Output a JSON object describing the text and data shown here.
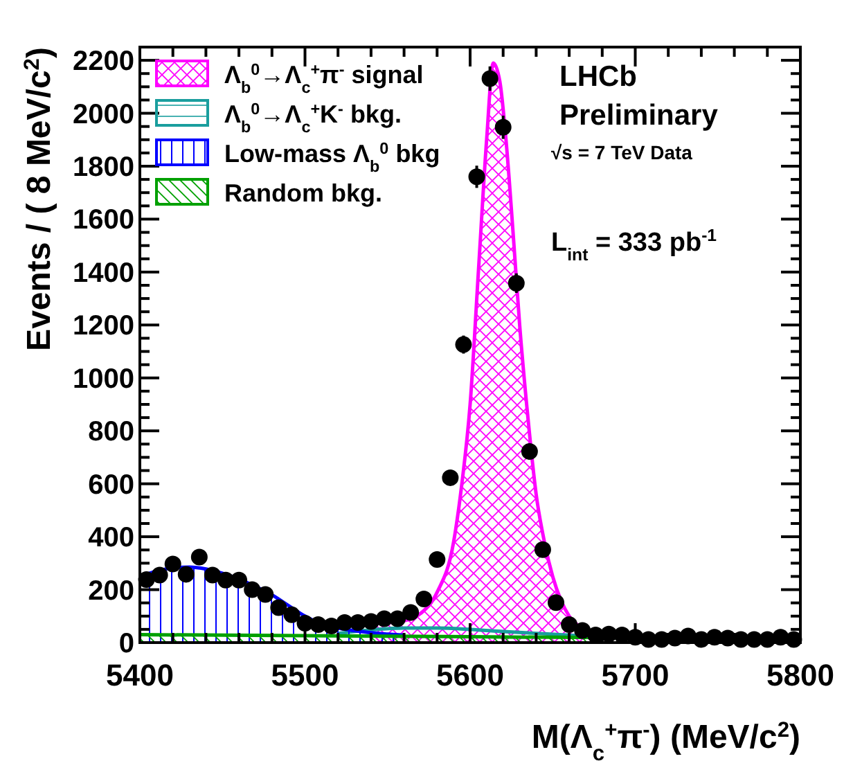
{
  "chart_data": {
    "type": "scatter",
    "xlabel": "M(Λ$_{c}$$^{+}$π$^{-}$) (MeV/c$^{2}$)",
    "ylabel": "Events / ( 8 MeV/c$^{2}$)",
    "xlim": [
      5400,
      5800
    ],
    "xticks": [
      5400,
      5500,
      5600,
      5700,
      5800
    ],
    "ylim": [
      0,
      2250
    ],
    "yticks": [
      0,
      200,
      400,
      600,
      800,
      1000,
      1200,
      1400,
      1600,
      1800,
      2000,
      2200
    ],
    "grid": false,
    "legend": "top left",
    "annotations": [
      "LHCb",
      "Preliminary",
      "√s = 7 TeV Data",
      "L$_{int}$ =  333 pb$^{-1}$"
    ],
    "series": [
      {
        "type": "area",
        "name": "Λ$_{b}$$^{0}$→Λ$_{c}$$^{+}$π$^{-}$ signal",
        "color": "#ff00ff",
        "x": [
          5540,
          5550,
          5560,
          5570,
          5580,
          5590,
          5595,
          5600,
          5605,
          5610,
          5614,
          5618,
          5622,
          5626,
          5630,
          5635,
          5640,
          5645,
          5650,
          5655,
          5660,
          5670,
          5680
        ],
        "values": [
          70,
          75,
          82,
          110,
          190,
          380,
          600,
          900,
          1400,
          1900,
          2190,
          2120,
          1880,
          1550,
          1200,
          850,
          560,
          380,
          250,
          160,
          100,
          50,
          25
        ]
      },
      {
        "type": "area",
        "name": "Λ$_{b}$$^{0}$→Λ$_{c}$$^{+}$K$^{-}$ bkg.",
        "color": "#1a9e9e",
        "x": [
          5520,
          5540,
          5560,
          5580,
          5600,
          5620,
          5640,
          5660,
          5680,
          5700
        ],
        "values": [
          35,
          48,
          55,
          55,
          50,
          42,
          35,
          28,
          22,
          18
        ]
      },
      {
        "type": "area",
        "name": "Low-mass Λ$_{b}$$^{0}$ bkg",
        "color": "#0000ff",
        "x": [
          5400,
          5410,
          5420,
          5430,
          5440,
          5450,
          5460,
          5470,
          5480,
          5490,
          5500,
          5510,
          5520,
          5530,
          5540,
          5550,
          5560
        ],
        "values": [
          250,
          270,
          282,
          285,
          278,
          262,
          240,
          212,
          180,
          140,
          100,
          70,
          55,
          45,
          37,
          32,
          28
        ]
      },
      {
        "type": "area",
        "name": "Random bkg.",
        "color": "#00a000",
        "x": [
          5400,
          5500,
          5600,
          5700,
          5800
        ],
        "values": [
          30,
          26,
          22,
          18,
          14
        ]
      },
      {
        "marker": "circle",
        "color": "#000000",
        "x": [
          5404,
          5412,
          5420,
          5428,
          5436,
          5444,
          5452,
          5460,
          5468,
          5476,
          5484,
          5492,
          5500,
          5508,
          5516,
          5524,
          5532,
          5540,
          5548,
          5556,
          5564,
          5572,
          5580,
          5588,
          5596,
          5604,
          5612,
          5620,
          5628,
          5636,
          5644,
          5652,
          5660,
          5668,
          5676,
          5684,
          5692,
          5700,
          5708,
          5716,
          5724,
          5732,
          5740,
          5748,
          5756,
          5764,
          5772,
          5780,
          5788,
          5796
        ],
        "values": [
          238,
          255,
          297,
          258,
          323,
          255,
          236,
          236,
          200,
          182,
          132,
          105,
          73,
          68,
          63,
          76,
          76,
          80,
          90,
          90,
          114,
          165,
          314,
          623,
          1126,
          1760,
          2131,
          1947,
          1358,
          722,
          351,
          151,
          68,
          46,
          29,
          32,
          29,
          20,
          12,
          12,
          17,
          25,
          12,
          20,
          17,
          12,
          12,
          12,
          20,
          12
        ],
        "errors": [
          null,
          null,
          null,
          null,
          null,
          null,
          null,
          null,
          null,
          null,
          null,
          null,
          null,
          null,
          null,
          null,
          null,
          null,
          null,
          null,
          null,
          null,
          null,
          25,
          34,
          42,
          46,
          44,
          37,
          27,
          null,
          null,
          null,
          null,
          null,
          null,
          null,
          null,
          null,
          null,
          null,
          null,
          null,
          null,
          null,
          null,
          null,
          null,
          null,
          null
        ]
      }
    ]
  }
}
